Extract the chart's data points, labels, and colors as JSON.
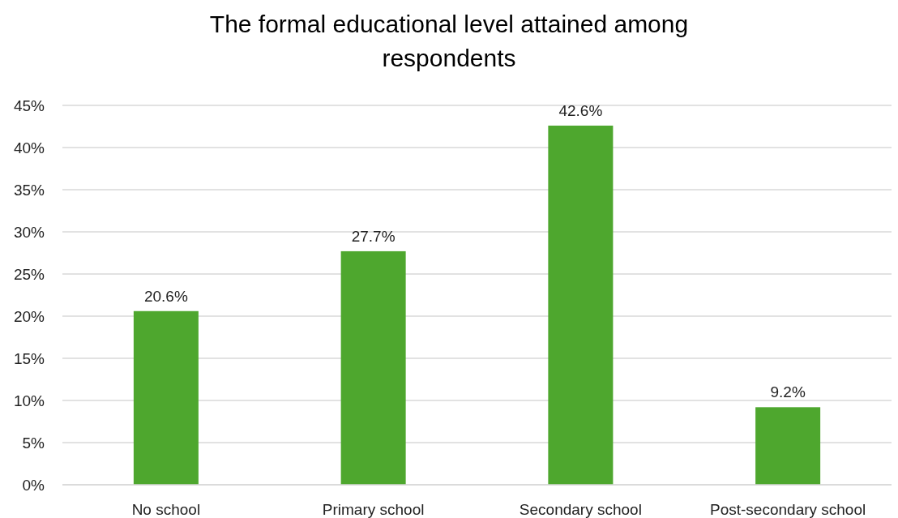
{
  "chart_data": {
    "type": "bar",
    "title": "The formal educational level attained among respondents",
    "categories": [
      "No school",
      "Primary school",
      "Secondary school",
      "Post-secondary school"
    ],
    "values": [
      20.6,
      27.7,
      42.6,
      9.2
    ],
    "value_labels": [
      "20.6%",
      "27.7%",
      "42.6%",
      "9.2%"
    ],
    "color": "#4ea72e",
    "ylim": [
      0,
      45
    ],
    "yticks": [
      {
        "value": 0,
        "label": "0%"
      },
      {
        "value": 5,
        "label": "5%"
      },
      {
        "value": 10,
        "label": "10%"
      },
      {
        "value": 15,
        "label": "15%"
      },
      {
        "value": 20,
        "label": "20%"
      },
      {
        "value": 25,
        "label": "25%"
      },
      {
        "value": 30,
        "label": "30%"
      },
      {
        "value": 35,
        "label": "35%"
      },
      {
        "value": 40,
        "label": "40%"
      },
      {
        "value": 45,
        "label": "45%"
      }
    ],
    "grid": "y"
  }
}
